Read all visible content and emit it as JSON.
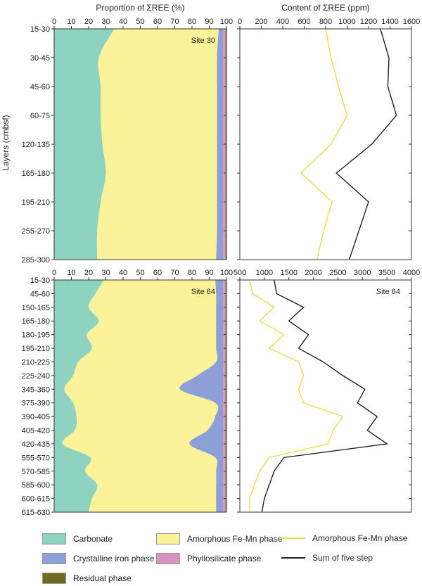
{
  "colors": {
    "carbonate": "#8ed3c0",
    "amorphous": "#fcf29a",
    "crystalline": "#8d9fd7",
    "phyllosilicate": "#d991c2",
    "residual": "#6f6a1e",
    "line_amorphous": "#e6e04a",
    "line_sum": "#222222"
  },
  "figure": {
    "ylabel": "Layers (cmbsf)"
  },
  "legend": {
    "carbonate": "Carbonate",
    "crystalline": "Crystalline iron phase",
    "residual": "Residual phase",
    "amorphous": "Amorphous Fe-Mn phase",
    "phyllosilicate": "Phyllosilicate phase",
    "line_amorphous": "Amorphous Fe-Mn phase",
    "line_sum": "Sum of five step"
  },
  "chart_data": [
    {
      "type": "area",
      "id": "site30-proportion",
      "title": "Proportion of ΣREE (%)",
      "annotation": "Site 30",
      "xlim": [
        0,
        100
      ],
      "xticks": [
        0,
        10,
        20,
        30,
        40,
        50,
        60,
        70,
        80,
        90,
        100
      ],
      "categories": [
        "15-30",
        "30-45",
        "45-60",
        "60-75",
        "120-135",
        "165-180",
        "195-210",
        "255-270",
        "285-300"
      ],
      "series": [
        {
          "name": "Carbonate",
          "values": [
            35,
            26,
            27,
            27,
            28,
            30,
            27,
            25,
            25
          ]
        },
        {
          "name": "Amorphous Fe-Mn phase",
          "values": [
            60.5,
            68.5,
            67.5,
            67.5,
            66.5,
            64.5,
            67.5,
            69.5,
            69
          ]
        },
        {
          "name": "Crystalline iron phase",
          "values": [
            2.5,
            3.5,
            3.5,
            3.5,
            3.5,
            3.5,
            3.5,
            3.5,
            4
          ]
        },
        {
          "name": "Phyllosilicate phase",
          "values": [
            1.5,
            1.5,
            1.5,
            1.5,
            1.5,
            1.5,
            1.5,
            1.5,
            1.5
          ]
        },
        {
          "name": "Residual phase",
          "values": [
            0.5,
            0.5,
            0.5,
            0.5,
            0.5,
            0.5,
            0.5,
            0.5,
            0.5
          ]
        }
      ]
    },
    {
      "type": "line",
      "id": "site30-content",
      "title": "Content of ΣREE (ppm)",
      "xlim": [
        0,
        1600
      ],
      "xticks": [
        0,
        200,
        400,
        600,
        800,
        1000,
        1200,
        1400,
        1600
      ],
      "categories": [
        "15-30",
        "30-45",
        "45-60",
        "60-75",
        "120-135",
        "165-180",
        "195-210",
        "255-270",
        "285-300"
      ],
      "series": [
        {
          "name": "Amorphous Fe-Mn phase",
          "values": [
            800,
            850,
            920,
            1000,
            850,
            570,
            860,
            780,
            720
          ]
        },
        {
          "name": "Sum of five step",
          "values": [
            1310,
            1390,
            1380,
            1460,
            1230,
            900,
            1200,
            1110,
            1020
          ]
        }
      ]
    },
    {
      "type": "area",
      "id": "site64-proportion",
      "annotation": "Site 64",
      "xlim": [
        0,
        100
      ],
      "xticks": [
        0,
        10,
        20,
        30,
        40,
        50,
        60,
        70,
        80,
        90,
        100
      ],
      "categories": [
        "15-30",
        "45-60",
        "150-165",
        "165-180",
        "180-195",
        "195-210",
        "210-225",
        "225-240",
        "345-360",
        "375-390",
        "390-405",
        "405-420",
        "420-435",
        "555-570",
        "570-585",
        "585-600",
        "600-615",
        "615-630"
      ],
      "series": [
        {
          "name": "Carbonate",
          "values": [
            29,
            24,
            20,
            26,
            19,
            22,
            14,
            11,
            6,
            11,
            13,
            12,
            5,
            21,
            18,
            25,
            22,
            20
          ]
        },
        {
          "name": "Amorphous Fe-Mn phase",
          "values": [
            64.5,
            70,
            74,
            68,
            75,
            72,
            80,
            72,
            67,
            82.5,
            80.5,
            77,
            73.5,
            72.5,
            76,
            69,
            72,
            74
          ]
        },
        {
          "name": "Crystalline iron phase",
          "values": [
            4.5,
            4,
            4,
            4,
            4,
            4,
            4,
            15,
            25,
            4.5,
            4.5,
            9,
            19.5,
            4.5,
            4,
            4,
            4,
            4
          ]
        },
        {
          "name": "Phyllosilicate phase",
          "values": [
            1.5,
            1.5,
            1.5,
            1.5,
            1.5,
            1.5,
            1.5,
            1.5,
            1.5,
            1.5,
            1.5,
            1.5,
            1.5,
            1.5,
            1.5,
            1.5,
            1.5,
            1.5
          ]
        },
        {
          "name": "Residual phase",
          "values": [
            0.5,
            0.5,
            0.5,
            0.5,
            0.5,
            0.5,
            0.5,
            0.5,
            0.5,
            0.5,
            0.5,
            0.5,
            0.5,
            0.5,
            0.5,
            0.5,
            0.5,
            0.5
          ]
        }
      ]
    },
    {
      "type": "line",
      "id": "site64-content",
      "annotation": "Site 64",
      "xlim": [
        500,
        4000
      ],
      "xticks": [
        500,
        1000,
        1500,
        2000,
        2500,
        3000,
        3500,
        4000
      ],
      "categories": [
        "15-30",
        "45-60",
        "150-165",
        "165-180",
        "180-195",
        "195-210",
        "210-225",
        "225-240",
        "345-360",
        "375-390",
        "390-405",
        "405-420",
        "420-435",
        "555-570",
        "570-585",
        "585-600",
        "600-615",
        "615-630"
      ],
      "series": [
        {
          "name": "Amorphous Fe-Mn phase",
          "values": [
            700,
            760,
            1200,
            900,
            1400,
            1100,
            1700,
            1800,
            1700,
            1800,
            2600,
            2400,
            2300,
            1100,
            900,
            800,
            700,
            700
          ]
        },
        {
          "name": "Sum of five step",
          "values": [
            1200,
            1250,
            1800,
            1500,
            1900,
            1700,
            2200,
            2600,
            3050,
            2900,
            3300,
            3100,
            3500,
            1400,
            1200,
            1100,
            1000,
            950
          ]
        }
      ]
    }
  ]
}
